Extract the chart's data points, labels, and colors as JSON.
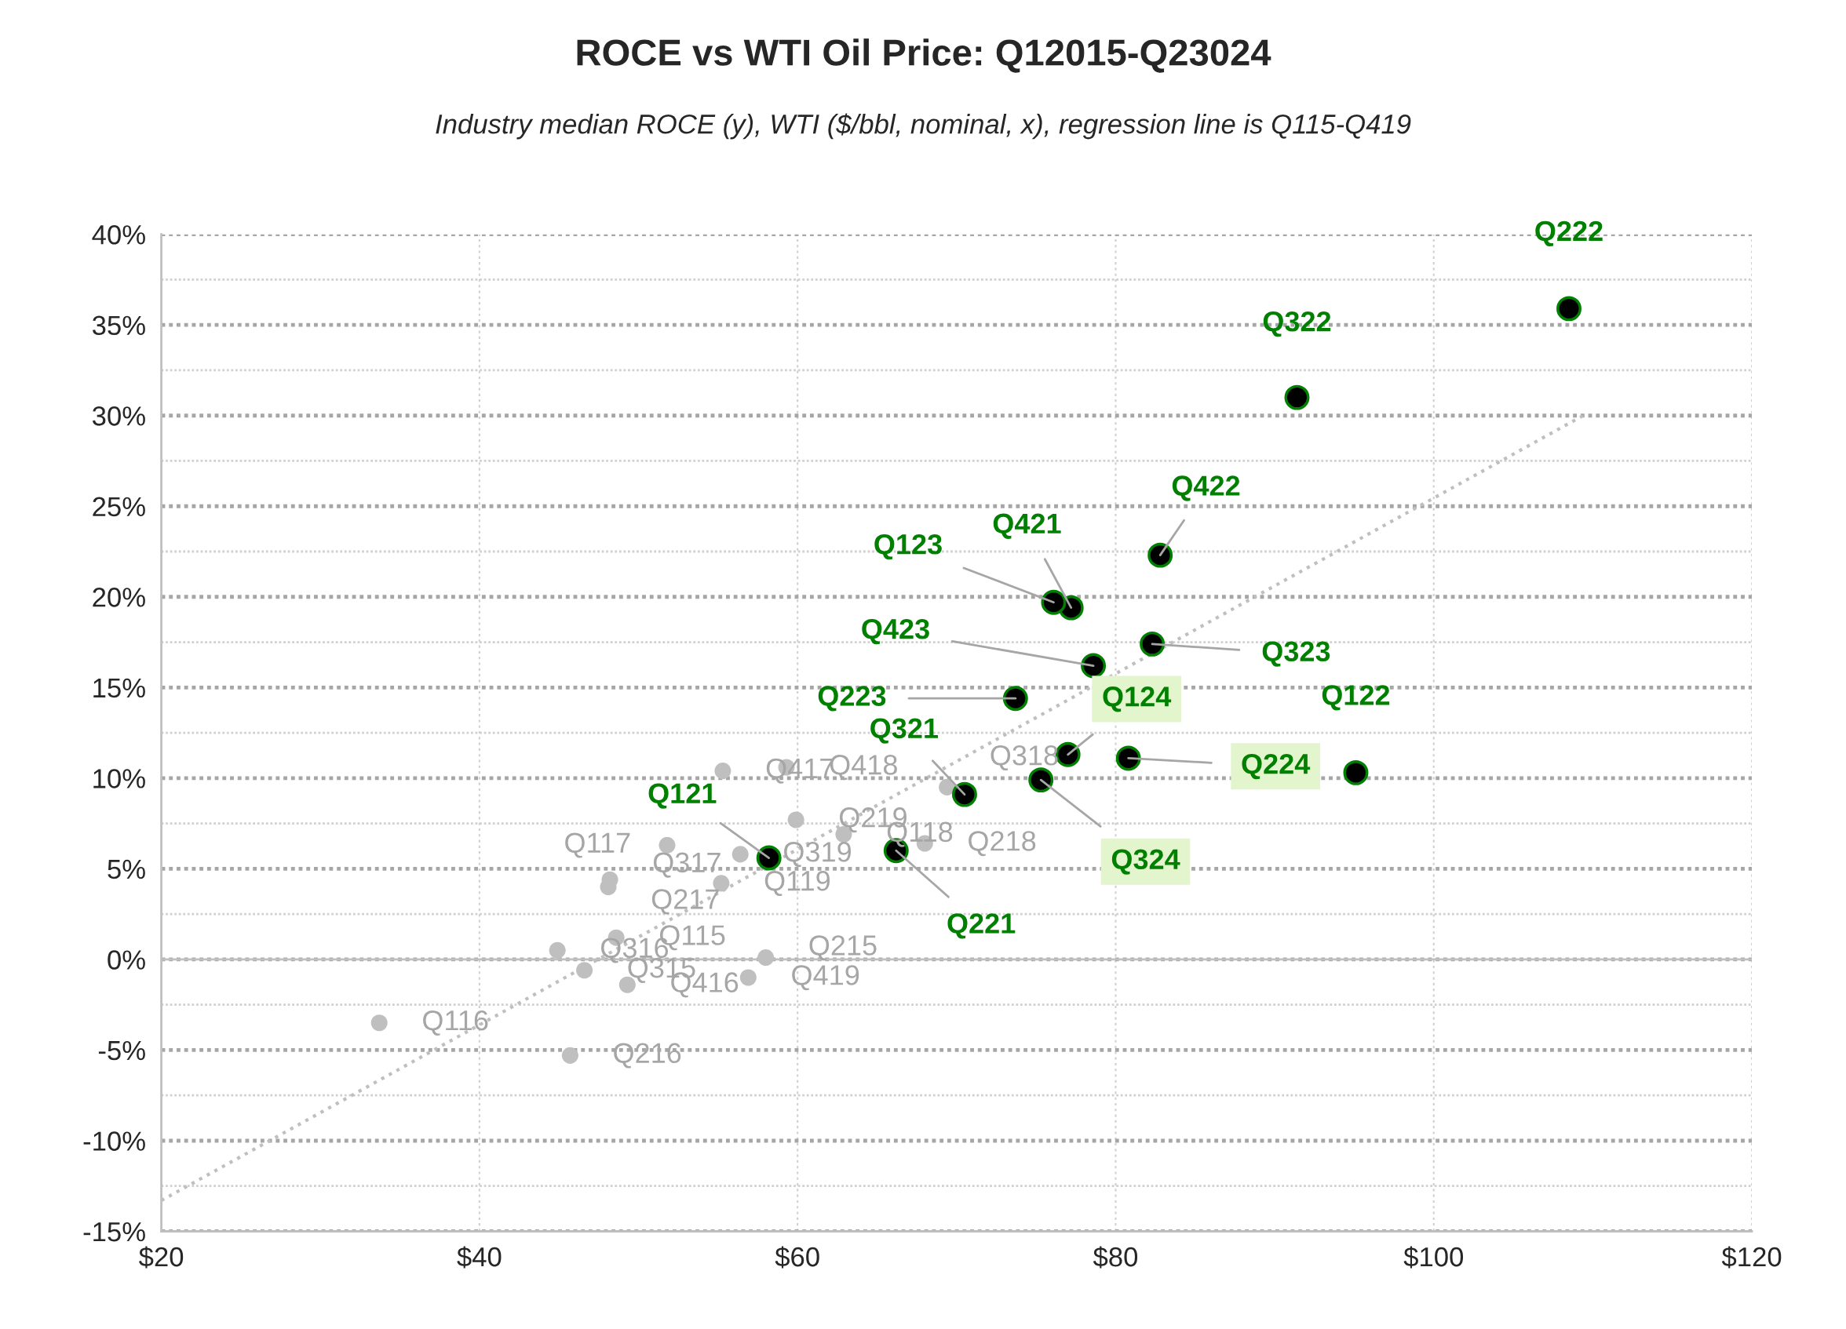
{
  "chart_data": {
    "type": "scatter",
    "title": "ROCE vs WTI Oil Price: Q12015-Q23024",
    "subtitle": "Industry median ROCE (y), WTI ($/bbl, nominal, x), regression line is Q115-Q419",
    "xlim": [
      20,
      120
    ],
    "xticks": [
      {
        "value": 20,
        "label": "$20"
      },
      {
        "value": 40,
        "label": "$40"
      },
      {
        "value": 60,
        "label": "$60"
      },
      {
        "value": 80,
        "label": "$80"
      },
      {
        "value": 100,
        "label": "$100"
      },
      {
        "value": 120,
        "label": "$120"
      }
    ],
    "ylim": [
      -15,
      40
    ],
    "yticks": [
      {
        "value": -15,
        "label": "-15%"
      },
      {
        "value": -12.5,
        "label": null
      },
      {
        "value": -10,
        "label": "-10%"
      },
      {
        "value": -7.5,
        "label": null
      },
      {
        "value": -5,
        "label": "-5%"
      },
      {
        "value": -2.5,
        "label": null
      },
      {
        "value": 0,
        "label": "0%"
      },
      {
        "value": 2.5,
        "label": null
      },
      {
        "value": 5,
        "label": "5%"
      },
      {
        "value": 7.5,
        "label": null
      },
      {
        "value": 10,
        "label": "10%"
      },
      {
        "value": 12.5,
        "label": null
      },
      {
        "value": 15,
        "label": "15%"
      },
      {
        "value": 17.5,
        "label": null
      },
      {
        "value": 20,
        "label": "20%"
      },
      {
        "value": 22.5,
        "label": null
      },
      {
        "value": 25,
        "label": "25%"
      },
      {
        "value": 27.5,
        "label": null
      },
      {
        "value": 30,
        "label": "30%"
      },
      {
        "value": 32.5,
        "label": null
      },
      {
        "value": 35,
        "label": "35%"
      },
      {
        "value": 37.5,
        "label": null
      },
      {
        "value": 40,
        "label": "40%"
      }
    ],
    "grid": true,
    "marker": "circle",
    "ref_lines": [
      {
        "axis": "y",
        "value": 0,
        "color": "#bfbfbf",
        "line_style": "solid"
      }
    ],
    "series": [
      {
        "color": "#bfbfbf",
        "x": [
          48.6,
          58.0,
          46.6,
          33.7,
          45.7,
          44.9,
          49.3,
          51.8,
          48.1,
          48.2,
          55.3,
          62.9,
          68.0,
          69.4,
          59.3,
          55.2,
          59.9,
          56.4,
          56.9
        ],
        "values": [
          1.2,
          0.1,
          -0.6,
          -3.5,
          -5.3,
          0.5,
          -1.4,
          6.3,
          4.0,
          4.4,
          10.4,
          6.9,
          6.4,
          9.5,
          10.6,
          4.2,
          7.7,
          5.8,
          -1.0
        ],
        "value_labels": [
          "Q115",
          "Q215",
          "Q315",
          "Q116",
          "Q216",
          "Q316",
          "Q416",
          "Q117",
          "Q217",
          "Q317",
          "Q417",
          "Q118",
          "Q218",
          "Q318",
          "Q418",
          "Q119",
          "Q219",
          "Q319",
          "Q419"
        ]
      },
      {
        "color": "#000000",
        "x": [
          58.2,
          66.2,
          70.5,
          77.2,
          95.1,
          108.5,
          91.4,
          82.8,
          76.1,
          73.7,
          82.3,
          78.6
        ],
        "values": [
          5.6,
          6.0,
          9.1,
          19.4,
          10.3,
          35.9,
          31.0,
          22.3,
          19.7,
          14.4,
          17.4,
          16.2
        ],
        "value_labels": [
          "Q121",
          "Q221",
          "Q321",
          "Q421",
          "Q122",
          "Q222",
          "Q322",
          "Q422",
          "Q123",
          "Q223",
          "Q323",
          "Q423"
        ]
      },
      {
        "color": "#000000",
        "x": [
          77.0,
          80.8,
          75.3
        ],
        "values": [
          11.3,
          11.1,
          9.9
        ],
        "value_labels": [
          "Q124",
          "Q224",
          "Q324"
        ]
      },
      {
        "type": "line",
        "color": "#bfbfbf",
        "line_style": "dotted",
        "marker": "none",
        "x": [
          20,
          109.6
        ],
        "values": [
          -13.3,
          30.1
        ]
      }
    ]
  }
}
